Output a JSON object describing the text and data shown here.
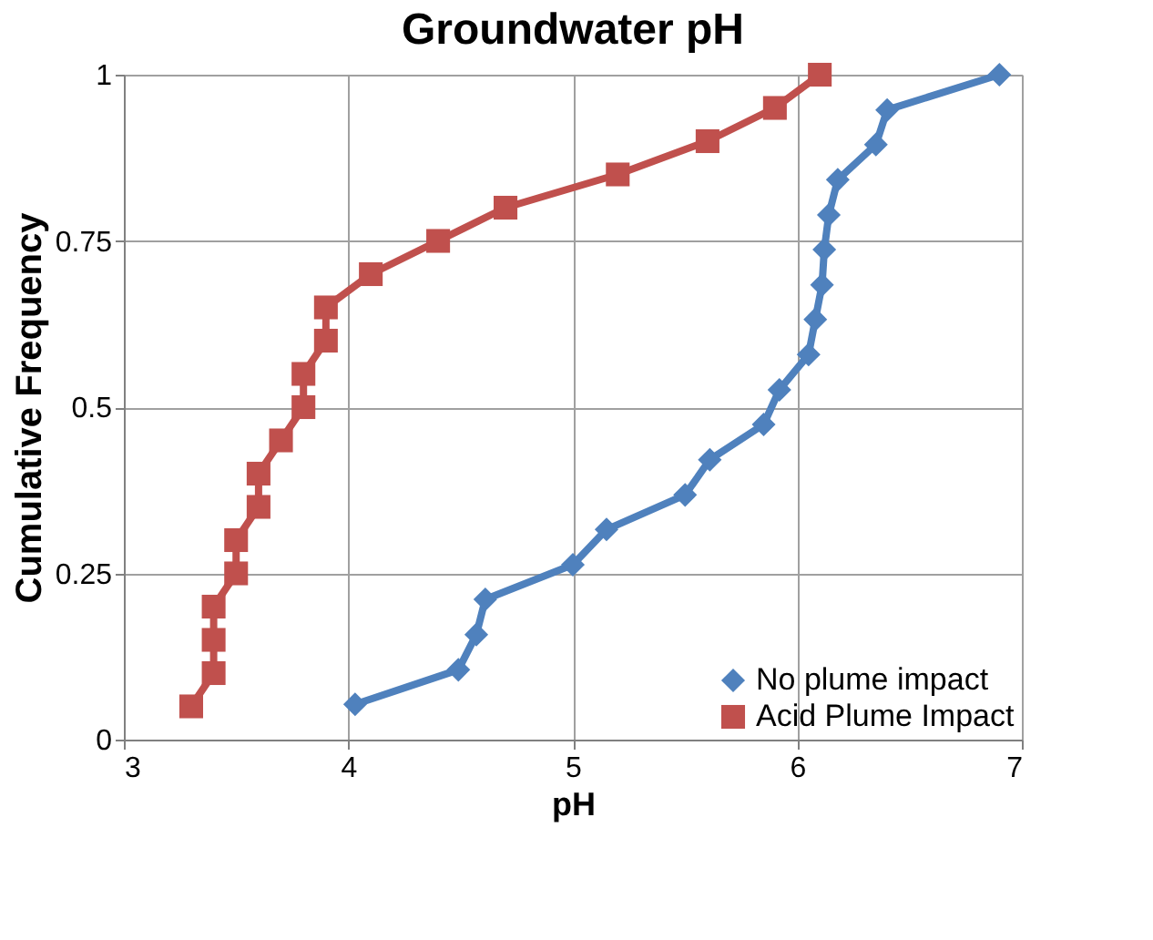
{
  "chart_data": {
    "type": "line",
    "title": "Groundwater pH",
    "xlabel": "pH",
    "ylabel": "Cumulative Frequency",
    "xlim": [
      3,
      7
    ],
    "xticks": [
      3,
      4,
      5,
      6,
      7
    ],
    "ylim": [
      0,
      1
    ],
    "yticks": [
      0,
      0.25,
      0.5,
      0.75,
      1
    ],
    "grid": true,
    "legend": "bottom right",
    "series": [
      {
        "name": "No plume impact",
        "color": "#4f81bd",
        "marker": "diamond",
        "x": [
          4.03,
          4.49,
          4.57,
          4.61,
          5.0,
          5.15,
          5.5,
          5.61,
          5.85,
          5.92,
          6.05,
          6.08,
          6.11,
          6.12,
          6.14,
          6.18,
          6.35,
          6.4,
          6.9
        ],
        "values": [
          0.053,
          0.105,
          0.158,
          0.211,
          0.263,
          0.316,
          0.368,
          0.421,
          0.474,
          0.526,
          0.579,
          0.632,
          0.684,
          0.737,
          0.789,
          0.842,
          0.895,
          0.947,
          1.0
        ]
      },
      {
        "name": "Acid Plume Impact",
        "color": "#c0504d",
        "marker": "square",
        "x": [
          3.3,
          3.4,
          3.4,
          3.4,
          3.5,
          3.5,
          3.6,
          3.6,
          3.7,
          3.8,
          3.8,
          3.9,
          3.9,
          4.1,
          4.4,
          4.7,
          5.2,
          5.6,
          5.9,
          6.1
        ],
        "values": [
          0.05,
          0.1,
          0.15,
          0.2,
          0.25,
          0.3,
          0.35,
          0.4,
          0.45,
          0.5,
          0.55,
          0.6,
          0.65,
          0.7,
          0.75,
          0.8,
          0.85,
          0.9,
          0.95,
          1.0
        ]
      }
    ]
  }
}
